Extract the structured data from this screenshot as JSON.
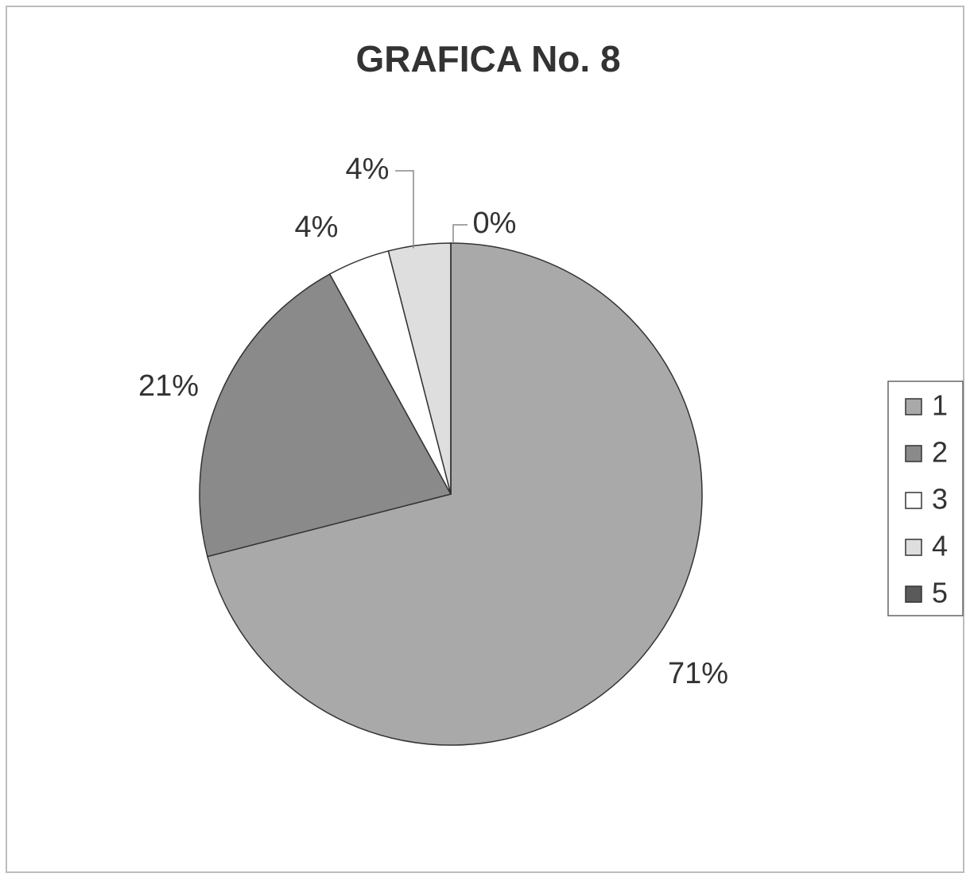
{
  "chart_data": {
    "type": "pie",
    "title": "GRAFICA No. 8",
    "categories": [
      "1",
      "2",
      "3",
      "4",
      "5"
    ],
    "values": [
      71,
      21,
      4,
      4,
      0
    ],
    "value_labels": [
      "71%",
      "21%",
      "4%",
      "4%",
      "0%"
    ],
    "colors": [
      "#a9a9a9",
      "#8a8a8a",
      "#ffffff",
      "#dedede",
      "#5a5a5a"
    ],
    "legend": "right"
  }
}
